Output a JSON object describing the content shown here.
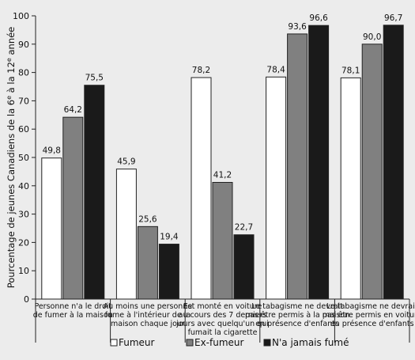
{
  "chart_data": {
    "type": "bar",
    "ylabel": "Pourcentage de jeunes Canadiens de la 6e à la 12e année",
    "ylim": [
      0,
      100
    ],
    "yticks": [
      0,
      10,
      20,
      30,
      40,
      50,
      60,
      70,
      80,
      90,
      100
    ],
    "grid": false,
    "legend_position": "bottom",
    "categories": [
      [
        "Personne n'a le droit",
        "de fumer à la maison"
      ],
      [
        "Au moins une personne",
        "fume à l'intérieur de la",
        "maison chaque jour"
      ],
      [
        "Est monté en voiture",
        "au cours des 7 derniers",
        "jours avec quelqu'un qui",
        "fumait la cigarette"
      ],
      [
        "Le tabagisme ne devrait",
        "pas être permis à la maison",
        "en présence d'enfants"
      ],
      [
        "Le tabagisme ne devrait",
        "pas être permis en voiture",
        "en présence d'enfants"
      ]
    ],
    "series": [
      {
        "name": "Fumeur",
        "color": "#ffffff",
        "values": [
          49.8,
          45.9,
          78.2,
          78.4,
          78.1
        ],
        "labels": [
          "49,8",
          "45,9",
          "78,2",
          "78,4",
          "78,1"
        ]
      },
      {
        "name": "Ex-fumeur",
        "color": "#808080",
        "values": [
          64.2,
          25.6,
          41.2,
          93.6,
          90.0
        ],
        "labels": [
          "64,2",
          "25,6",
          "41,2",
          "93,6",
          "90,0"
        ]
      },
      {
        "name": "N'a jamais fumé",
        "color": "#1a1a1a",
        "values": [
          75.5,
          19.4,
          22.7,
          96.6,
          96.7
        ],
        "labels": [
          "75,5",
          "19,4",
          "22,7",
          "96,6",
          "96,7"
        ]
      }
    ]
  }
}
